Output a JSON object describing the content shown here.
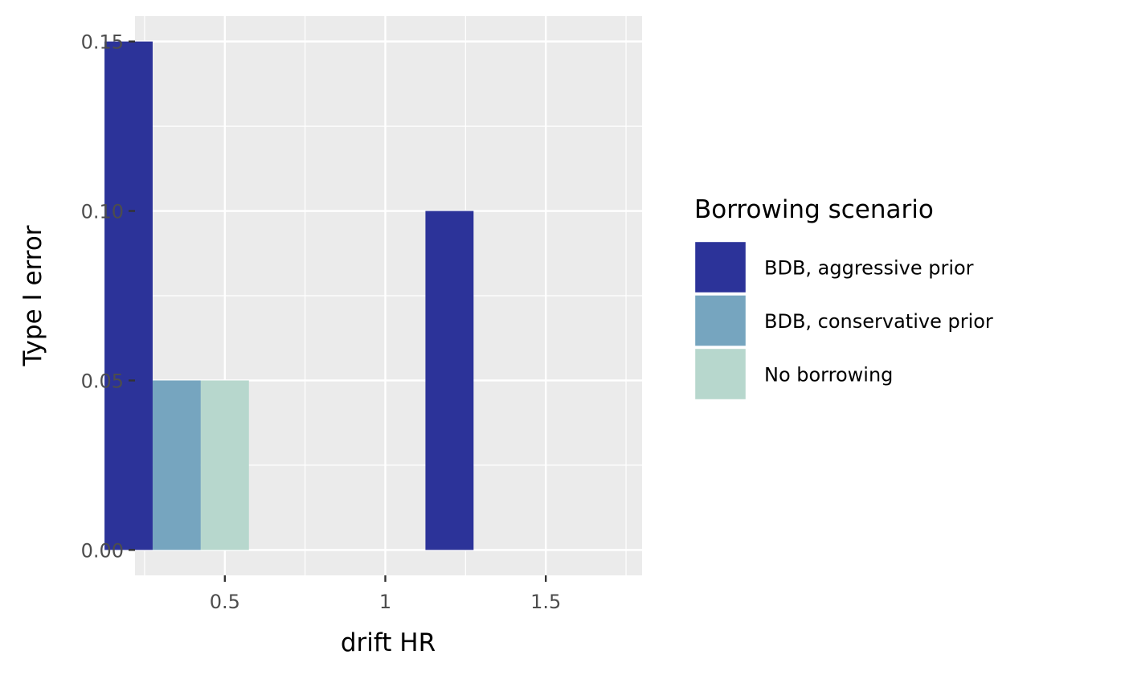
{
  "chart_data": {
    "type": "bar",
    "title": "",
    "xlabel": "drift HR",
    "ylabel": "Type I error",
    "xlim": [
      0.22,
      1.8
    ],
    "ylim": [
      -0.0075,
      0.1575
    ],
    "x_ticks": [
      0.5,
      1,
      1.5
    ],
    "x_tick_labels": [
      "0.5",
      "1",
      "1.5"
    ],
    "y_ticks": [
      0,
      0.05,
      0.1,
      0.15
    ],
    "y_tick_labels": [
      "0.00",
      "0.05",
      "0.10",
      "0.15"
    ],
    "group_width": 0.45,
    "grid": true,
    "legend": {
      "title": "Borrowing scenario",
      "position": "right"
    },
    "series": [
      {
        "name": "BDB, aggressive prior",
        "color": "#2c3399",
        "x": [
          0.35,
          1.35
        ],
        "values": [
          0.15,
          0.1
        ]
      },
      {
        "name": "BDB, conservative prior",
        "color": "#76a5bf",
        "x": [
          0.35,
          1.35
        ],
        "values": [
          0.05,
          0.0
        ]
      },
      {
        "name": "No borrowing",
        "color": "#b7d7cd",
        "x": [
          0.35,
          1.35
        ],
        "values": [
          0.05,
          0.0
        ]
      }
    ],
    "panel_background": "#ebebeb",
    "grid_color": "#ffffff"
  }
}
